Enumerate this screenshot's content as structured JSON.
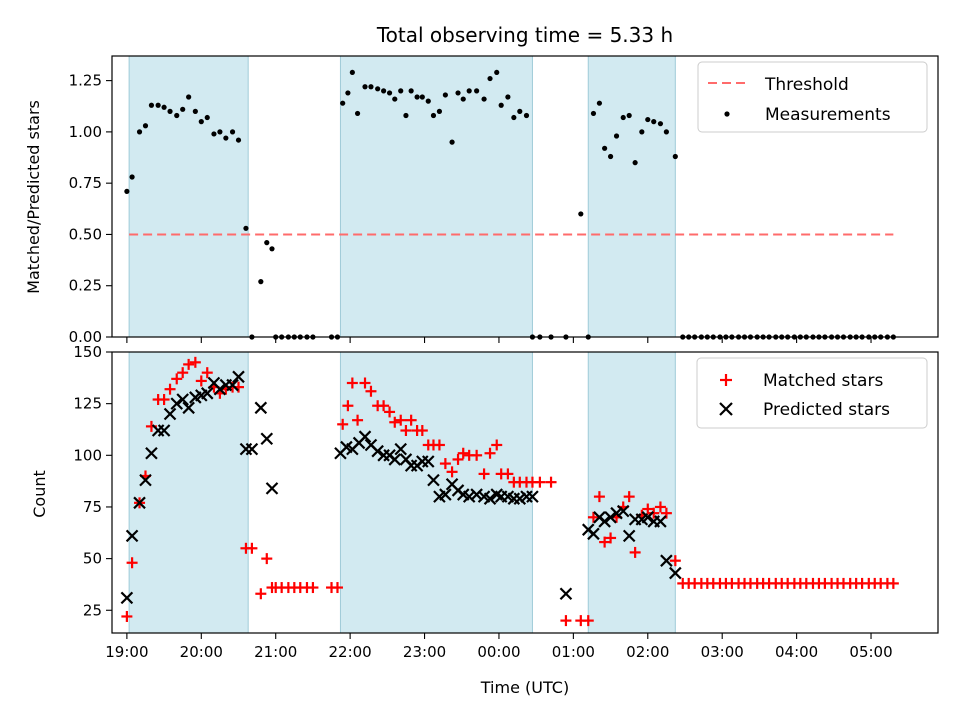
{
  "chart_data": {
    "title": "Total observing time = 5.33 h",
    "xlabel": "Time (UTC)",
    "xlim": [
      18.8,
      29.9
    ],
    "x_ticks": [
      {
        "v": 19,
        "label": "19:00"
      },
      {
        "v": 20,
        "label": "20:00"
      },
      {
        "v": 21,
        "label": "21:00"
      },
      {
        "v": 22,
        "label": "22:00"
      },
      {
        "v": 23,
        "label": "23:00"
      },
      {
        "v": 24,
        "label": "00:00"
      },
      {
        "v": 25,
        "label": "01:00"
      },
      {
        "v": 26,
        "label": "02:00"
      },
      {
        "v": 27,
        "label": "03:00"
      },
      {
        "v": 28,
        "label": "04:00"
      },
      {
        "v": 29,
        "label": "05:00"
      }
    ],
    "shaded_intervals": [
      [
        19.03,
        20.63
      ],
      [
        21.87,
        24.45
      ],
      [
        25.2,
        26.37
      ]
    ],
    "colors": {
      "shade": "#add8e6",
      "threshold": "#ff6b6b",
      "matched": "#ff0000",
      "predicted": "#000000",
      "measurements": "#000000"
    },
    "panels": [
      {
        "type": "scatter",
        "ylabel": "Matched/Predicted stars",
        "ylim": [
          0,
          1.37
        ],
        "y_ticks": [
          {
            "v": 0,
            "label": "0.00"
          },
          {
            "v": 0.25,
            "label": "0.25"
          },
          {
            "v": 0.5,
            "label": "0.50"
          },
          {
            "v": 0.75,
            "label": "0.75"
          },
          {
            "v": 1.0,
            "label": "1.00"
          },
          {
            "v": 1.25,
            "label": "1.25"
          }
        ],
        "legend_position": "top-right",
        "threshold": {
          "name": "Threshold",
          "y": 0.5,
          "x_range": [
            19.03,
            29.3
          ]
        },
        "measurements": {
          "name": "Measurements",
          "x": [
            19.0,
            19.07,
            19.17,
            19.25,
            19.33,
            19.42,
            19.5,
            19.58,
            19.67,
            19.75,
            19.83,
            19.92,
            20.0,
            20.08,
            20.17,
            20.25,
            20.33,
            20.42,
            20.5,
            20.6,
            20.68,
            20.8,
            20.88,
            20.95,
            21.0,
            21.08,
            21.17,
            21.25,
            21.33,
            21.42,
            21.5,
            21.75,
            21.83,
            21.9,
            21.97,
            22.03,
            22.1,
            22.2,
            22.28,
            22.37,
            22.45,
            22.53,
            22.6,
            22.68,
            22.75,
            22.82,
            22.9,
            22.97,
            23.05,
            23.12,
            23.2,
            23.28,
            23.37,
            23.45,
            23.52,
            23.6,
            23.7,
            23.8,
            23.88,
            23.97,
            24.03,
            24.12,
            24.2,
            24.28,
            24.37,
            24.45,
            24.55,
            24.7,
            24.9,
            25.1,
            25.2,
            25.27,
            25.35,
            25.42,
            25.5,
            25.58,
            25.67,
            25.75,
            25.83,
            25.92,
            26.0,
            26.08,
            26.17,
            26.25,
            26.37,
            26.47,
            26.55,
            26.63,
            26.72,
            26.8,
            26.88,
            26.97,
            27.05,
            27.13,
            27.22,
            27.3,
            27.38,
            27.47,
            27.55,
            27.63,
            27.72,
            27.8,
            27.88,
            27.97,
            28.05,
            28.13,
            28.22,
            28.3,
            28.38,
            28.47,
            28.55,
            28.63,
            28.72,
            28.8,
            28.88,
            28.97,
            29.05,
            29.13,
            29.22,
            29.3
          ],
          "y": [
            0.71,
            0.78,
            1.0,
            1.03,
            1.13,
            1.13,
            1.12,
            1.1,
            1.08,
            1.11,
            1.17,
            1.1,
            1.05,
            1.07,
            0.99,
            1.0,
            0.97,
            1.0,
            0.96,
            0.53,
            0.0,
            0.27,
            0.46,
            0.43,
            0.0,
            0.0,
            0.0,
            0.0,
            0.0,
            0.0,
            0.0,
            0.0,
            0.0,
            1.14,
            1.19,
            1.29,
            1.09,
            1.22,
            1.22,
            1.21,
            1.2,
            1.19,
            1.16,
            1.2,
            1.08,
            1.2,
            1.17,
            1.17,
            1.15,
            1.08,
            1.1,
            1.18,
            0.95,
            1.19,
            1.16,
            1.2,
            1.2,
            1.16,
            1.26,
            1.29,
            1.13,
            1.17,
            1.07,
            1.1,
            1.08,
            0.0,
            0.0,
            0.0,
            0.0,
            0.6,
            0.0,
            1.09,
            1.14,
            0.92,
            0.88,
            0.98,
            1.07,
            1.08,
            0.85,
            1.0,
            1.06,
            1.05,
            1.04,
            1.0,
            0.88,
            0.0,
            0.0,
            0.0,
            0.0,
            0.0,
            0.0,
            0.0,
            0.0,
            0.0,
            0.0,
            0.0,
            0.0,
            0.0,
            0.0,
            0.0,
            0.0,
            0.0,
            0.0,
            0.0,
            0.0,
            0.0,
            0.0,
            0.0,
            0.0,
            0.0,
            0.0,
            0.0,
            0.0,
            0.0,
            0.0,
            0.0,
            0.0,
            0.0,
            0.0,
            0.0
          ]
        }
      },
      {
        "type": "scatter",
        "ylabel": "Count",
        "ylim": [
          14,
          150
        ],
        "y_ticks": [
          {
            "v": 25,
            "label": "25"
          },
          {
            "v": 50,
            "label": "50"
          },
          {
            "v": 75,
            "label": "75"
          },
          {
            "v": 100,
            "label": "100"
          },
          {
            "v": 125,
            "label": "125"
          },
          {
            "v": 150,
            "label": "150"
          }
        ],
        "legend_position": "top-right",
        "series": [
          {
            "name": "Matched stars",
            "marker": "plus",
            "x": [
              19.0,
              19.07,
              19.17,
              19.25,
              19.33,
              19.42,
              19.5,
              19.58,
              19.67,
              19.75,
              19.83,
              19.92,
              20.0,
              20.08,
              20.17,
              20.25,
              20.33,
              20.42,
              20.5,
              20.6,
              20.68,
              20.8,
              20.88,
              20.95,
              21.0,
              21.08,
              21.17,
              21.25,
              21.33,
              21.42,
              21.5,
              21.75,
              21.83,
              21.9,
              21.97,
              22.03,
              22.1,
              22.2,
              22.28,
              22.37,
              22.45,
              22.53,
              22.6,
              22.68,
              22.75,
              22.82,
              22.9,
              22.97,
              23.05,
              23.12,
              23.2,
              23.28,
              23.37,
              23.45,
              23.52,
              23.6,
              23.7,
              23.8,
              23.88,
              23.97,
              24.03,
              24.12,
              24.2,
              24.28,
              24.37,
              24.45,
              24.55,
              24.7,
              24.9,
              25.1,
              25.2,
              25.27,
              25.35,
              25.42,
              25.5,
              25.58,
              25.67,
              25.75,
              25.83,
              25.92,
              26.0,
              26.08,
              26.17,
              26.25,
              26.37,
              26.47,
              26.55,
              26.63,
              26.72,
              26.8,
              26.88,
              26.97,
              27.05,
              27.13,
              27.22,
              27.3,
              27.38,
              27.47,
              27.55,
              27.63,
              27.72,
              27.8,
              27.88,
              27.97,
              28.05,
              28.13,
              28.22,
              28.3,
              28.38,
              28.47,
              28.55,
              28.63,
              28.72,
              28.8,
              28.88,
              28.97,
              29.05,
              29.13,
              29.22,
              29.3
            ],
            "y": [
              22,
              48,
              77,
              90,
              114,
              127,
              127,
              132,
              137,
              140,
              144,
              145,
              136,
              140,
              133,
              130,
              132,
              133,
              133,
              55,
              55,
              33,
              50,
              36,
              36,
              36,
              36,
              36,
              36,
              36,
              36,
              36,
              36,
              115,
              124,
              135,
              117,
              135,
              131,
              124,
              124,
              121,
              116,
              117,
              112,
              117,
              112,
              112,
              105,
              105,
              105,
              96,
              92,
              98,
              101,
              100,
              100,
              91,
              101,
              105,
              91,
              91,
              87,
              87,
              87,
              87,
              87,
              87,
              20,
              20,
              20,
              70,
              80,
              58,
              60,
              70,
              75,
              80,
              53,
              71,
              74,
              72,
              75,
              72,
              49,
              38,
              38,
              38,
              38,
              38,
              38,
              38,
              38,
              38,
              38,
              38,
              38,
              38,
              38,
              38,
              38,
              38,
              38,
              38,
              38,
              38,
              38,
              38,
              38,
              38,
              38,
              38,
              38,
              38,
              38,
              38,
              38,
              38,
              38,
              38
            ]
          },
          {
            "name": "Predicted stars",
            "marker": "x",
            "x": [
              19.0,
              19.07,
              19.17,
              19.25,
              19.33,
              19.42,
              19.5,
              19.58,
              19.67,
              19.75,
              19.83,
              19.92,
              20.0,
              20.08,
              20.17,
              20.25,
              20.33,
              20.42,
              20.5,
              20.6,
              20.68,
              20.8,
              20.88,
              20.95,
              21.87,
              21.95,
              22.03,
              22.12,
              22.2,
              22.28,
              22.37,
              22.45,
              22.53,
              22.6,
              22.68,
              22.75,
              22.82,
              22.9,
              22.97,
              23.05,
              23.12,
              23.2,
              23.28,
              23.37,
              23.45,
              23.52,
              23.6,
              23.7,
              23.8,
              23.88,
              23.97,
              24.03,
              24.12,
              24.2,
              24.28,
              24.37,
              24.45,
              24.9,
              25.2,
              25.27,
              25.35,
              25.42,
              25.5,
              25.58,
              25.67,
              25.75,
              25.83,
              25.92,
              26.0,
              26.08,
              26.17,
              26.25,
              26.37
            ],
            "y": [
              31,
              61,
              77,
              88,
              101,
              112,
              112,
              120,
              125,
              127,
              123,
              128,
              129,
              130,
              135,
              132,
              134,
              134,
              138,
              103,
              103,
              123,
              108,
              84,
              101,
              104,
              103,
              106,
              109,
              105,
              102,
              100,
              100,
              98,
              103,
              98,
              95,
              95,
              97,
              97,
              88,
              80,
              81,
              86,
              83,
              81,
              80,
              81,
              80,
              79,
              81,
              80,
              80,
              79,
              79,
              80,
              80,
              33,
              64,
              62,
              70,
              68,
              70,
              72,
              73,
              61,
              69,
              69,
              70,
              68,
              68,
              49,
              43
            ]
          }
        ]
      }
    ]
  }
}
